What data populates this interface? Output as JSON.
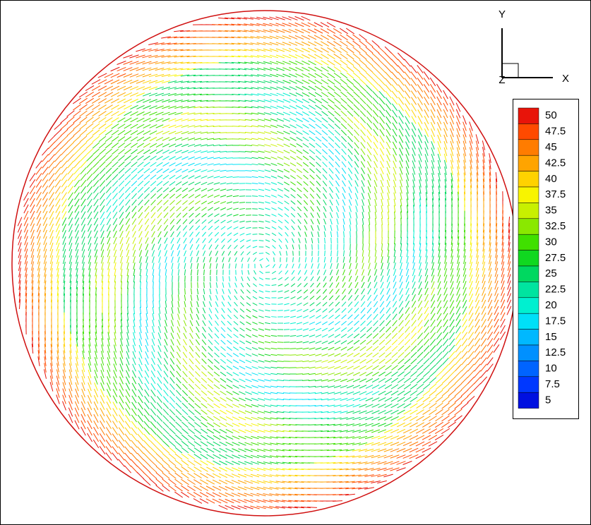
{
  "chart_data": {
    "type": "vector-field",
    "axis_labels": [
      "Y",
      "X",
      "Z"
    ],
    "legend": {
      "levels": [
        50,
        47.5,
        45,
        42.5,
        40,
        37.5,
        35,
        32.5,
        30,
        27.5,
        25,
        22.5,
        20,
        17.5,
        15,
        12.5,
        10,
        7.5,
        5
      ],
      "colors": [
        "#e8140a",
        "#ff4a00",
        "#ff7c00",
        "#ffa400",
        "#ffd200",
        "#f8f400",
        "#c8f000",
        "#8ae800",
        "#40e000",
        "#10d820",
        "#00d860",
        "#00e4a0",
        "#00f0d0",
        "#00e0f8",
        "#00b8ff",
        "#0090ff",
        "#0064ff",
        "#0038ff",
        "#0010e0"
      ]
    }
  }
}
